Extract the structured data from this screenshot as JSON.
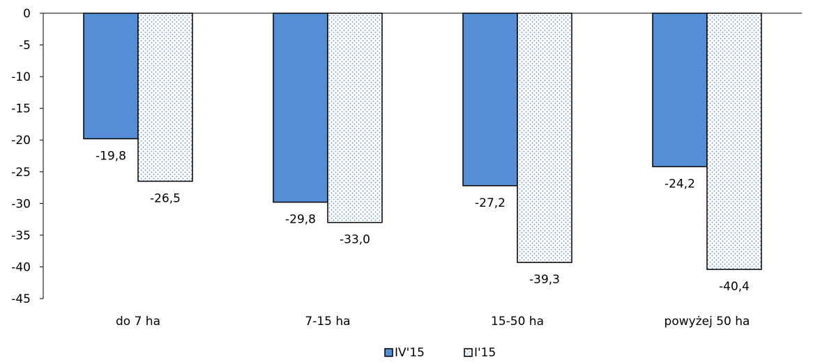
{
  "chart_data": {
    "type": "bar",
    "categories": [
      "do 7 ha",
      "7-15 ha",
      "15-50 ha",
      "powyżej 50 ha"
    ],
    "series": [
      {
        "name": "IV'15",
        "values": [
          -19.8,
          -29.8,
          -27.2,
          -24.2
        ],
        "labels": [
          "-19,8",
          "-29,8",
          "-27,2",
          "-24,2"
        ],
        "color": "#558ED5",
        "pattern": "solid"
      },
      {
        "name": "I'15",
        "values": [
          -26.5,
          -33.0,
          -39.3,
          -40.4
        ],
        "labels": [
          "-26,5",
          "-33,0",
          "-39,3",
          "-40,4"
        ],
        "color": "#C6D9F1",
        "pattern": "dotted"
      }
    ],
    "yticks": [
      "0",
      "-5",
      "-10",
      "-15",
      "-20",
      "-25",
      "-30",
      "-35",
      "-40",
      "-45"
    ],
    "ylim": [
      -45,
      0
    ],
    "grid": false,
    "legend_position": "bottom"
  }
}
